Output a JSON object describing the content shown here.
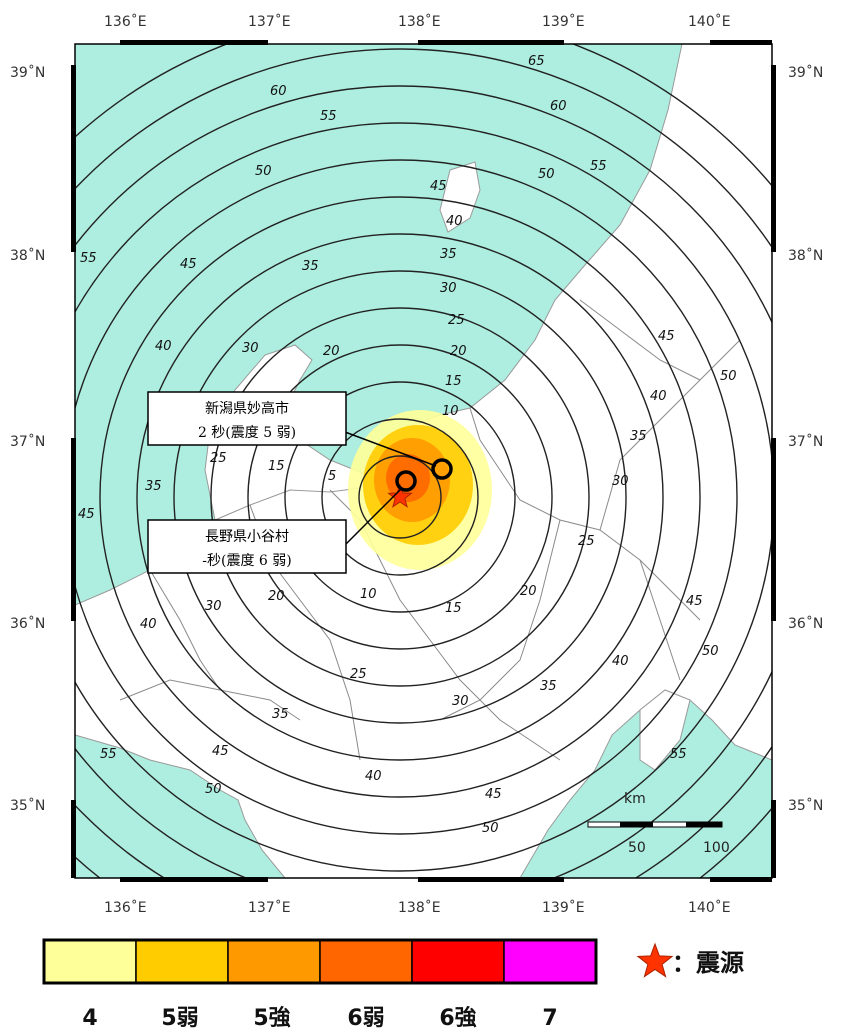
{
  "map": {
    "lon_labels": [
      "136˚E",
      "137˚E",
      "138˚E",
      "139˚E",
      "140˚E"
    ],
    "lat_labels": [
      "39˚N",
      "38˚N",
      "37˚N",
      "36˚N",
      "35˚N"
    ],
    "colors": {
      "sea": "#aeeee0",
      "land": "#ffffff",
      "contour": "#222222",
      "frame": "#000000"
    }
  },
  "contours": {
    "interval_s": 5,
    "labels": [
      "5",
      "10",
      "15",
      "20",
      "25",
      "30",
      "35",
      "40",
      "45",
      "50",
      "55",
      "60",
      "65"
    ]
  },
  "callouts": [
    {
      "location": "新潟県妙高市",
      "detail": "2 秒(震度 5 弱)"
    },
    {
      "location": "長野県小谷村",
      "detail": "-秒(震度 6 弱)"
    }
  ],
  "scale_bar": {
    "unit": "km",
    "marks": [
      "50",
      "100"
    ]
  },
  "legend": {
    "classes": [
      {
        "label": "4",
        "color": "#ffff99"
      },
      {
        "label": "5弱",
        "color": "#ffcc00"
      },
      {
        "label": "5強",
        "color": "#ff9900"
      },
      {
        "label": "6弱",
        "color": "#ff6600"
      },
      {
        "label": "6強",
        "color": "#ff0000"
      },
      {
        "label": "7",
        "color": "#ff00ff"
      }
    ],
    "epicenter_label": "：震源",
    "epicenter_icon": "red-star",
    "epicenter_color": "#ff3300"
  }
}
